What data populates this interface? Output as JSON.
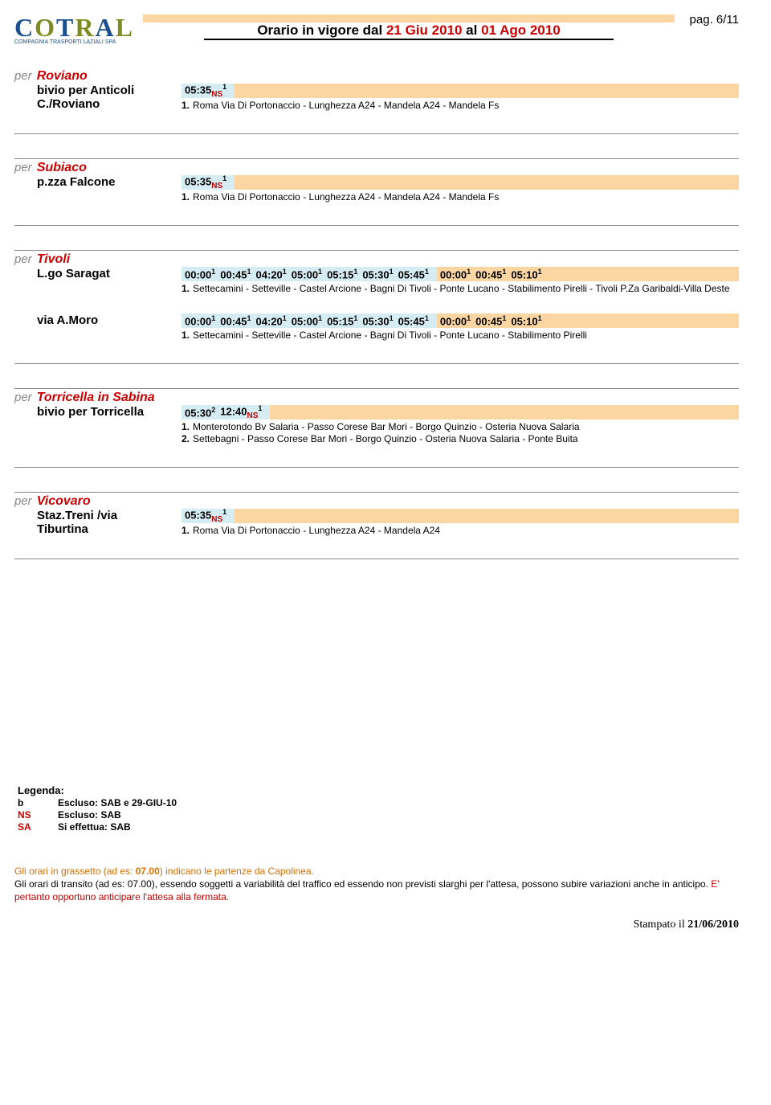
{
  "header": {
    "title_prefix": "Orario in vigore dal ",
    "date_from": "21 Giu 2010",
    "title_mid": " al ",
    "date_to": "01 Ago 2010",
    "page": "pag. 6/11",
    "logo_sub": "COMPAGNIA TRASPORTI LAZIALI SPA"
  },
  "sections": [
    {
      "dest": "Roviano",
      "stops": [
        {
          "label_l1": "bivio per Anticoli",
          "label_l2": "C./Roviano",
          "times_blue": [
            {
              "t": "05:35",
              "sub": "NS",
              "sup": "1"
            }
          ],
          "times_peach": [],
          "notes": [
            {
              "n": "1.",
              "t": "Roma Via Di Portonaccio - Lunghezza A24 - Mandela A24 - Mandela Fs"
            }
          ]
        }
      ]
    },
    {
      "dest": "Subiaco",
      "stops": [
        {
          "label_l1": "p.zza Falcone",
          "times_blue": [
            {
              "t": "05:35",
              "sub": "NS",
              "sup": "1"
            }
          ],
          "times_peach": [],
          "notes": [
            {
              "n": "1.",
              "t": "Roma Via Di Portonaccio - Lunghezza A24 - Mandela A24 - Mandela Fs"
            }
          ]
        }
      ]
    },
    {
      "dest": "Tivoli",
      "stops": [
        {
          "label_l1": "L.go Saragat",
          "times_blue": [
            {
              "t": "00:00",
              "sup": "1"
            },
            {
              "t": "00:45",
              "sup": "1"
            },
            {
              "t": "04:20",
              "sup": "1"
            },
            {
              "t": "05:00",
              "sup": "1"
            },
            {
              "t": "05:15",
              "sup": "1"
            },
            {
              "t": "05:30",
              "sup": "1"
            },
            {
              "t": "05:45",
              "sup": "1"
            }
          ],
          "times_peach": [
            {
              "t": "00:00",
              "sup": "1"
            },
            {
              "t": "00:45",
              "sup": "1"
            },
            {
              "t": "05:10",
              "sup": "1"
            }
          ],
          "notes": [
            {
              "n": "1.",
              "t": "Settecamini - Setteville - Castel Arcione - Bagni Di Tivoli - Ponte Lucano - Stabilimento Pirelli - Tivoli P.Za Garibaldi-Villa Deste"
            }
          ]
        },
        {
          "label_l1": "via A.Moro",
          "spacer": true,
          "times_blue": [
            {
              "t": "00:00",
              "sup": "1"
            },
            {
              "t": "00:45",
              "sup": "1"
            },
            {
              "t": "04:20",
              "sup": "1"
            },
            {
              "t": "05:00",
              "sup": "1"
            },
            {
              "t": "05:15",
              "sup": "1"
            },
            {
              "t": "05:30",
              "sup": "1"
            },
            {
              "t": "05:45",
              "sup": "1"
            }
          ],
          "times_peach": [
            {
              "t": "00:00",
              "sup": "1"
            },
            {
              "t": "00:45",
              "sup": "1"
            },
            {
              "t": "05:10",
              "sup": "1"
            }
          ],
          "notes": [
            {
              "n": "1.",
              "t": "Settecamini - Setteville - Castel Arcione - Bagni Di Tivoli - Ponte Lucano - Stabilimento Pirelli"
            }
          ]
        }
      ]
    },
    {
      "dest": "Torricella in Sabina",
      "stops": [
        {
          "label_l1": "bivio per Torricella",
          "times_blue": [
            {
              "t": "05:30",
              "sup": "2"
            },
            {
              "t": "12:40",
              "sub": "NS",
              "sup": "1"
            }
          ],
          "times_peach": [],
          "notes": [
            {
              "n": "1.",
              "t": "Monterotondo Bv Salaria - Passo Corese Bar Mori - Borgo Quinzio - Osteria Nuova Salaria"
            },
            {
              "n": "2.",
              "t": "Settebagni - Passo Corese Bar Mori - Borgo Quinzio - Osteria Nuova Salaria - Ponte Buita"
            }
          ]
        }
      ]
    },
    {
      "dest": "Vicovaro",
      "stops": [
        {
          "label_l1": "Staz.Treni /via",
          "label_l2": "Tiburtina",
          "times_blue": [
            {
              "t": "05:35",
              "sub": "NS",
              "sup": "1"
            }
          ],
          "times_peach": [],
          "notes": [
            {
              "n": "1.",
              "t": "Roma Via Di Portonaccio - Lunghezza A24 - Mandela A24"
            }
          ]
        }
      ]
    }
  ],
  "legend": {
    "title": "Legenda:",
    "rows": [
      {
        "code": "b",
        "red": false,
        "desc": "Escluso: SAB e 29-GIU-10"
      },
      {
        "code": "NS",
        "red": true,
        "desc": "Escluso: SAB"
      },
      {
        "code": "SA",
        "red": true,
        "desc": "Si effettua: SAB"
      }
    ]
  },
  "footer": {
    "l1a": "Gli orari in grassetto ",
    "l1b": "(ad es: ",
    "l1c": "07.00",
    "l1d": ") indicano le partenze da Capolinea.",
    "l2": "Gli orari di transito (ad es: 07.00), essendo soggetti a variabilità del traffico ed essendo non previsti slarghi per l'attesa, possono subire variazioni anche in anticipo. ",
    "l2b": "E' pertanto opportuno anticipare l'attesa alla fermata.",
    "stampato_pre": "Stampato il ",
    "stampato_date": "21/06/2010"
  }
}
